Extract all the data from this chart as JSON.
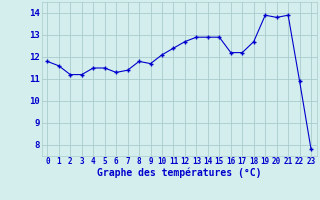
{
  "x": [
    0,
    1,
    2,
    3,
    4,
    5,
    6,
    7,
    8,
    9,
    10,
    11,
    12,
    13,
    14,
    15,
    16,
    17,
    18,
    19,
    20,
    21,
    22,
    23
  ],
  "y": [
    11.8,
    11.6,
    11.2,
    11.2,
    11.5,
    11.5,
    11.3,
    11.4,
    11.8,
    11.7,
    12.1,
    12.4,
    12.7,
    12.9,
    12.9,
    12.9,
    12.2,
    12.2,
    12.7,
    13.9,
    13.8,
    13.9,
    10.9,
    7.8
  ],
  "line_color": "#0000cc",
  "marker": "+",
  "marker_color": "#0000cc",
  "bg_color": "#d4eeee",
  "grid_color": "#aacccc",
  "xlabel": "Graphe des températures (°C)",
  "xlabel_color": "#0000cc",
  "tick_color": "#0000cc",
  "ylabel_ticks": [
    8,
    9,
    10,
    11,
    12,
    13,
    14
  ],
  "xtick_labels": [
    "0",
    "1",
    "2",
    "3",
    "4",
    "5",
    "6",
    "7",
    "8",
    "9",
    "10",
    "11",
    "12",
    "13",
    "14",
    "15",
    "16",
    "17",
    "18",
    "19",
    "20",
    "21",
    "22",
    "23"
  ],
  "xlim": [
    -0.5,
    23.5
  ],
  "ylim": [
    7.5,
    14.5
  ]
}
